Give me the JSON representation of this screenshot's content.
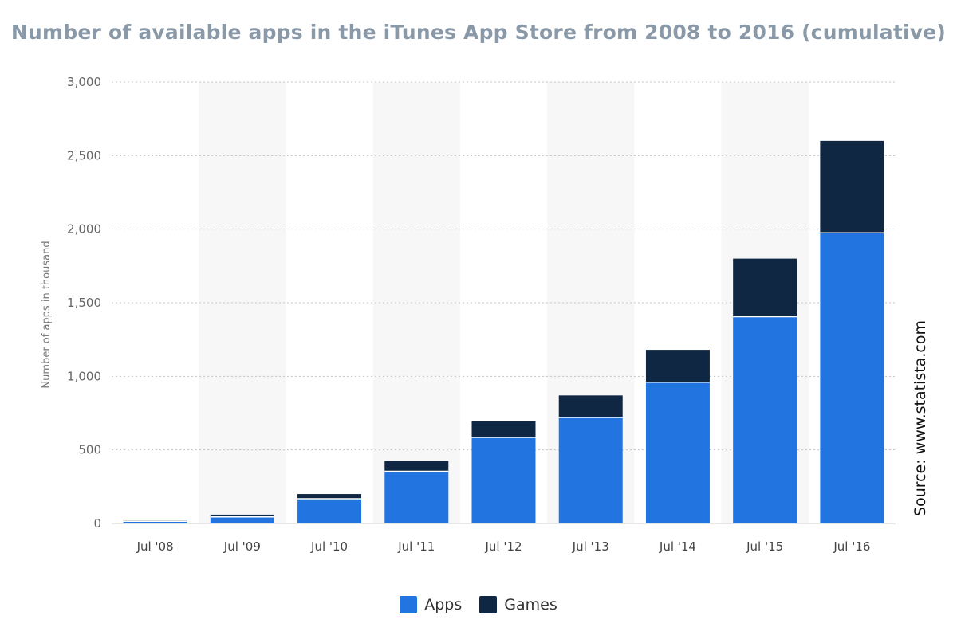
{
  "chart_data": {
    "type": "bar",
    "stacked": true,
    "title": "Number of available apps in the iTunes App Store from 2008 to 2016 (cumulative)",
    "xlabel": "",
    "ylabel": "Number of apps in thousand",
    "ylim": [
      0,
      3000
    ],
    "yticks": [
      0,
      500,
      1000,
      1500,
      2000,
      2500,
      3000
    ],
    "ytick_labels": [
      "0",
      "500",
      "1,000",
      "1,500",
      "2,000",
      "2,500",
      "3,000"
    ],
    "grid": true,
    "legend_position": "bottom-center",
    "categories": [
      "Jul '08",
      "Jul '09",
      "Jul '10",
      "Jul '11",
      "Jul '12",
      "Jul '13",
      "Jul '14",
      "Jul '15",
      "Jul '16"
    ],
    "series": [
      {
        "name": "Apps",
        "color": "#2274e0",
        "values": [
          15,
          45,
          168,
          355,
          585,
          720,
          960,
          1405,
          1975
        ]
      },
      {
        "name": "Games",
        "color": "#0f2742",
        "values": [
          5,
          15,
          32,
          70,
          110,
          150,
          220,
          395,
          625
        ]
      }
    ],
    "source": "Source: www.statista.com"
  }
}
